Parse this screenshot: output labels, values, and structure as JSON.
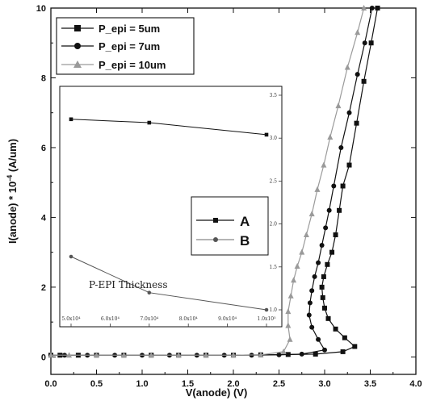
{
  "chart_data": [
    {
      "type": "line",
      "title": "",
      "xlabel": "V(anode)  (V)",
      "ylabel": "I(anode) * 10",
      "ylabel_exp": "-4",
      "ylabel_unit": "  (A/um)",
      "xlim": [
        0.0,
        4.0
      ],
      "ylim": [
        -0.5,
        10
      ],
      "x_ticks": [
        "0.0",
        "0.5",
        "1.0",
        "1.5",
        "2.0",
        "2.5",
        "3.0",
        "3.5",
        "4.0"
      ],
      "y_ticks": [
        "0",
        "2",
        "4",
        "6",
        "8",
        "10"
      ],
      "legend": "top-left",
      "grid": false,
      "series": [
        {
          "name": "P_epi =  5um",
          "marker": "square",
          "color": "#111111",
          "points": [
            [
              0.0,
              0.05
            ],
            [
              0.1,
              0.05
            ],
            [
              0.3,
              0.05
            ],
            [
              0.5,
              0.05
            ],
            [
              0.8,
              0.05
            ],
            [
              1.1,
              0.05
            ],
            [
              1.4,
              0.05
            ],
            [
              1.7,
              0.05
            ],
            [
              2.0,
              0.05
            ],
            [
              2.3,
              0.06
            ],
            [
              2.6,
              0.07
            ],
            [
              2.9,
              0.08
            ],
            [
              3.2,
              0.15
            ],
            [
              3.33,
              0.3
            ],
            [
              3.22,
              0.55
            ],
            [
              3.12,
              0.8
            ],
            [
              3.04,
              1.1
            ],
            [
              3.0,
              1.4
            ],
            [
              2.98,
              1.7
            ],
            [
              2.97,
              2.0
            ],
            [
              2.99,
              2.3
            ],
            [
              3.03,
              2.65
            ],
            [
              3.08,
              3.0
            ],
            [
              3.12,
              3.5
            ],
            [
              3.16,
              4.2
            ],
            [
              3.2,
              4.9
            ],
            [
              3.27,
              5.5
            ],
            [
              3.35,
              6.7
            ],
            [
              3.43,
              7.9
            ],
            [
              3.51,
              9.0
            ],
            [
              3.58,
              10.0
            ]
          ]
        },
        {
          "name": "P_epi =  7um",
          "marker": "circle",
          "color": "#111111",
          "points": [
            [
              0.0,
              0.05
            ],
            [
              0.15,
              0.05
            ],
            [
              0.4,
              0.05
            ],
            [
              0.7,
              0.05
            ],
            [
              1.0,
              0.05
            ],
            [
              1.3,
              0.05
            ],
            [
              1.6,
              0.05
            ],
            [
              1.9,
              0.05
            ],
            [
              2.2,
              0.05
            ],
            [
              2.5,
              0.06
            ],
            [
              2.75,
              0.08
            ],
            [
              3.0,
              0.2
            ],
            [
              2.93,
              0.5
            ],
            [
              2.86,
              0.85
            ],
            [
              2.83,
              1.2
            ],
            [
              2.84,
              1.55
            ],
            [
              2.86,
              1.9
            ],
            [
              2.89,
              2.3
            ],
            [
              2.93,
              2.7
            ],
            [
              2.97,
              3.2
            ],
            [
              3.01,
              3.7
            ],
            [
              3.05,
              4.2
            ],
            [
              3.1,
              4.9
            ],
            [
              3.18,
              6.0
            ],
            [
              3.27,
              7.0
            ],
            [
              3.36,
              8.1
            ],
            [
              3.44,
              9.0
            ],
            [
              3.52,
              10.0
            ]
          ]
        },
        {
          "name": "P_epi = 10um",
          "marker": "triangle",
          "color": "#9a9a9a",
          "points": [
            [
              0.0,
              0.05
            ],
            [
              0.2,
              0.05
            ],
            [
              0.5,
              0.05
            ],
            [
              0.8,
              0.05
            ],
            [
              1.1,
              0.05
            ],
            [
              1.4,
              0.05
            ],
            [
              1.7,
              0.05
            ],
            [
              2.0,
              0.05
            ],
            [
              2.3,
              0.06
            ],
            [
              2.55,
              0.15
            ],
            [
              2.62,
              0.5
            ],
            [
              2.6,
              0.9
            ],
            [
              2.6,
              1.3
            ],
            [
              2.63,
              1.75
            ],
            [
              2.66,
              2.2
            ],
            [
              2.7,
              2.6
            ],
            [
              2.75,
              3.0
            ],
            [
              2.8,
              3.5
            ],
            [
              2.86,
              4.1
            ],
            [
              2.92,
              4.8
            ],
            [
              2.99,
              5.5
            ],
            [
              3.06,
              6.3
            ],
            [
              3.15,
              7.2
            ],
            [
              3.25,
              8.3
            ],
            [
              3.36,
              9.3
            ],
            [
              3.43,
              10.0
            ]
          ]
        }
      ]
    },
    {
      "type": "line",
      "title": "",
      "xlabel": "P-EPI  Thickness",
      "ylabel": "",
      "x": [
        5.0,
        7.0,
        10.0
      ],
      "x_ticks": [
        "5.0x10⁴",
        "6.0x10⁴",
        "7.0x10⁴",
        "8.0x10⁴",
        "9.0x10⁴",
        "1.0x10⁵"
      ],
      "y_ticks": [
        "1.0",
        "1.5",
        "2.0",
        "2.5",
        "3.0",
        "3.5"
      ],
      "ylim": [
        0.9,
        3.5
      ],
      "legend": "right",
      "series": [
        {
          "name": "A",
          "marker": "square",
          "values": [
            3.22,
            3.18,
            3.04
          ]
        },
        {
          "name": "B",
          "marker": "circle",
          "values": [
            1.62,
            1.2,
            1.0
          ]
        }
      ]
    }
  ]
}
